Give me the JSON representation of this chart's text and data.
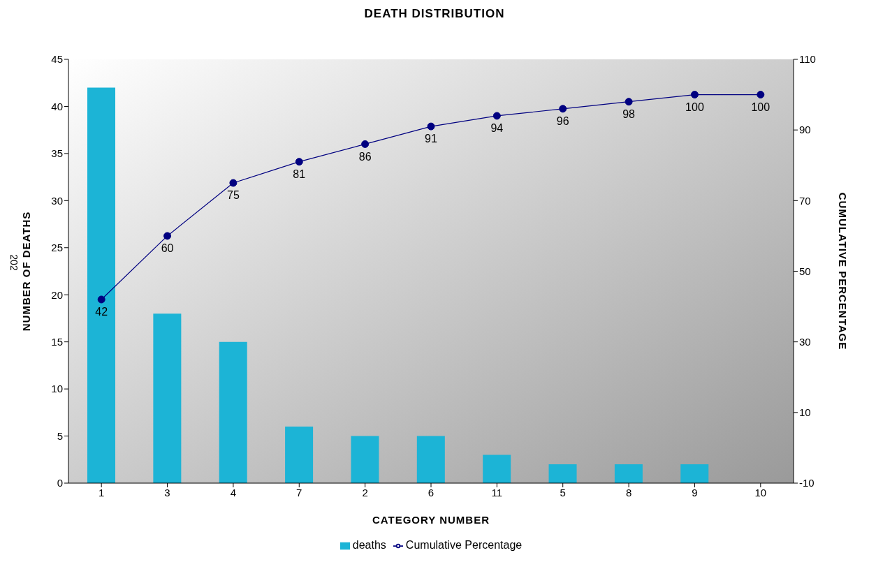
{
  "chart_data": {
    "type": "bar",
    "title": "DEATH DISTRIBUTION",
    "xlabel": "CATEGORY NUMBER",
    "ylabel": "NUMBER OF DEATHS",
    "y2label": "CUMULATIVE PERCENTAGE",
    "annotations": [
      "202"
    ],
    "categories": [
      "1",
      "3",
      "4",
      "7",
      "2",
      "6",
      "11",
      "5",
      "8",
      "9",
      "10"
    ],
    "series": [
      {
        "name": "deaths",
        "color": "#1cb4d6",
        "values": [
          42,
          18,
          15,
          6,
          5,
          5,
          3,
          2,
          2,
          2,
          0
        ]
      },
      {
        "name": "Cumulative Percentage",
        "type": "line",
        "axis": "y2",
        "color": "#000080",
        "marker": "circle",
        "values": [
          42,
          60,
          75,
          81,
          86,
          91,
          94,
          96,
          98,
          100,
          100
        ],
        "value_labels": [
          "42",
          "60",
          "75",
          "81",
          "86",
          "91",
          "94",
          "96",
          "98",
          "100",
          "100"
        ]
      }
    ],
    "ylim": [
      0,
      45
    ],
    "yticks": [
      0,
      5,
      10,
      15,
      20,
      25,
      30,
      35,
      40,
      45
    ],
    "y2lim": [
      -10,
      110
    ],
    "y2ticks": [
      -10,
      10,
      30,
      50,
      70,
      90,
      110
    ],
    "grid": false,
    "legend": "bottom"
  }
}
